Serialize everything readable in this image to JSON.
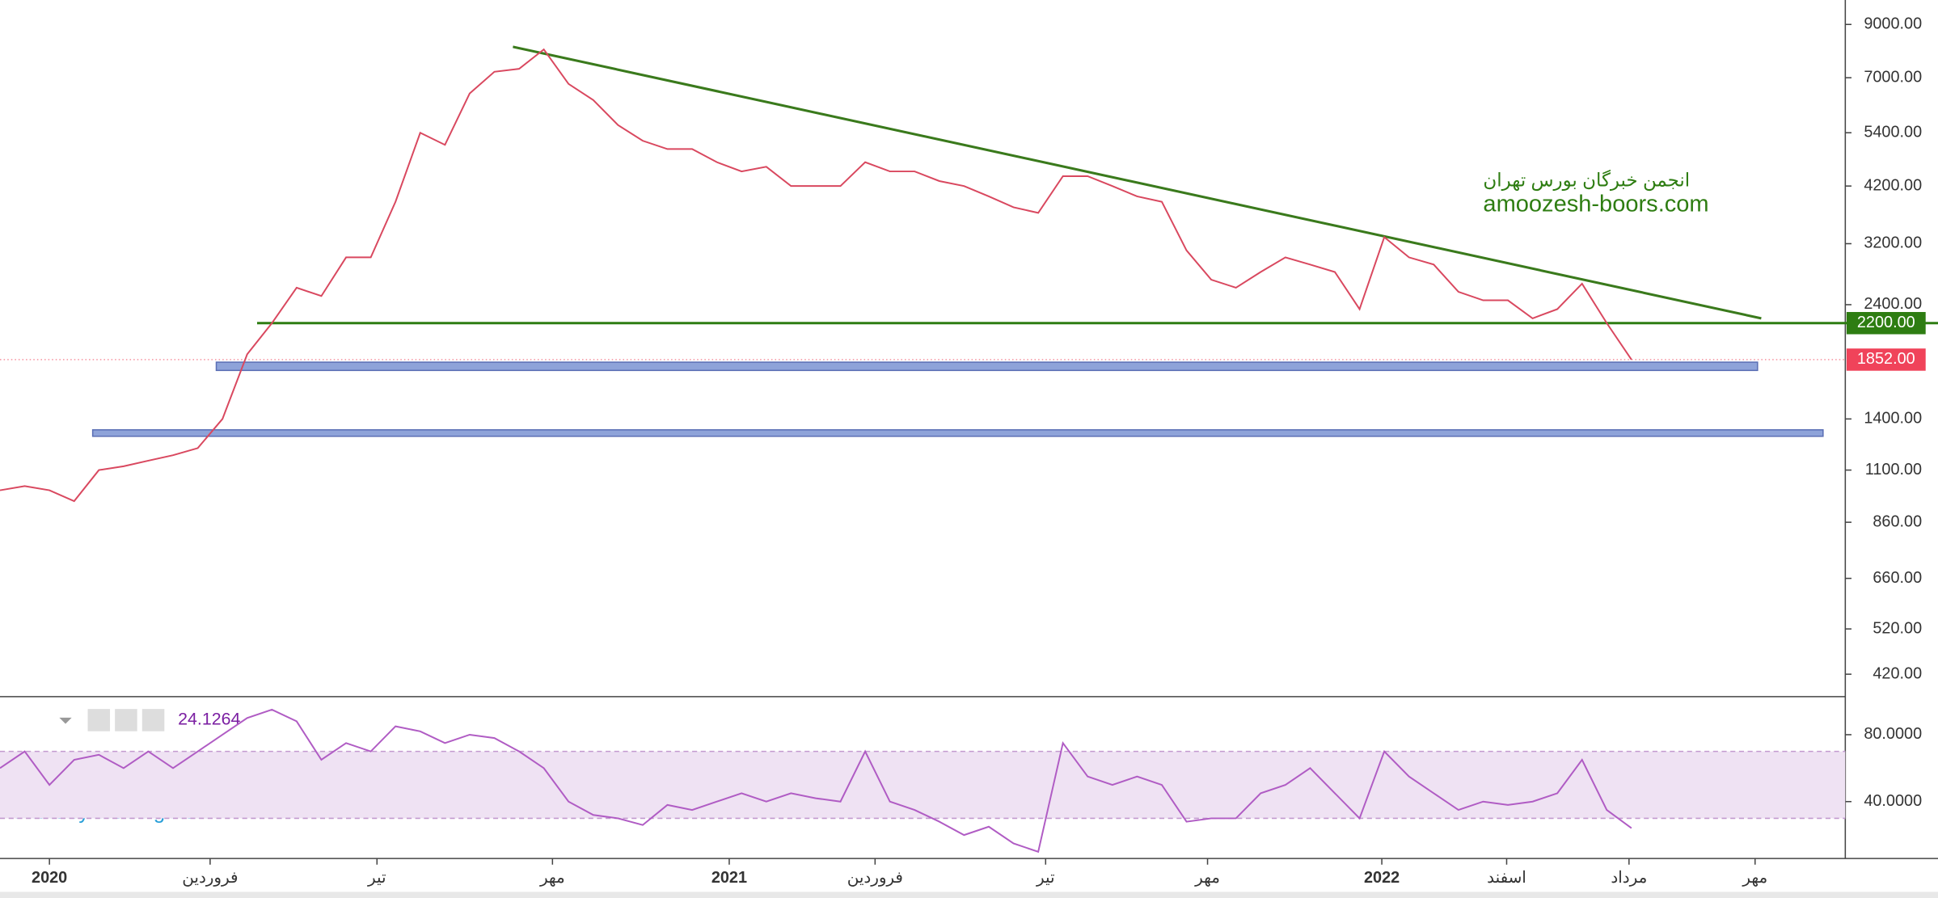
{
  "chart_data": [
    {
      "type": "line",
      "log_scale": true,
      "series": [
        {
          "name": "Price",
          "color": "#d9485f",
          "values": [
            1000,
            1020,
            1000,
            950,
            1100,
            1120,
            1150,
            1180,
            1220,
            1400,
            1900,
            2200,
            2600,
            2500,
            3000,
            3000,
            3900,
            5400,
            5100,
            6500,
            7200,
            7300,
            8000,
            6800,
            6300,
            5600,
            5200,
            5000,
            5000,
            4700,
            4500,
            4600,
            4200,
            4200,
            4200,
            4700,
            4500,
            4500,
            4300,
            4200,
            4000,
            3800,
            3700,
            4400,
            4400,
            4200,
            4000,
            3900,
            3100,
            2700,
            2600,
            2800,
            3000,
            2900,
            2800,
            2350,
            3300,
            3000,
            2900,
            2550,
            2450,
            2450,
            2250,
            2350,
            2650,
            2200,
            1852
          ]
        }
      ],
      "ylim": [
        380,
        10100
      ],
      "yticks": [
        {
          "value": 9000,
          "label": "9000.00"
        },
        {
          "value": 7000,
          "label": "7000.00"
        },
        {
          "value": 5400,
          "label": "5400.00"
        },
        {
          "value": 4200,
          "label": "4200.00"
        },
        {
          "value": 3200,
          "label": "3200.00"
        },
        {
          "value": 2400,
          "label": "2400.00"
        },
        {
          "value": 1400,
          "label": "1400.00"
        },
        {
          "value": 1100,
          "label": "1100.00"
        },
        {
          "value": 860,
          "label": "860.00"
        },
        {
          "value": 660,
          "label": "660.00"
        },
        {
          "value": 520,
          "label": "520.00"
        },
        {
          "value": 420,
          "label": "420.00"
        }
      ],
      "price_tags": [
        {
          "value": 2200,
          "label": "2200.00",
          "color": "#2e7d12"
        },
        {
          "value": 1852,
          "label": "1852.00",
          "color": "#f0435a"
        }
      ],
      "trendline": {
        "start": 8100,
        "end": 2250,
        "color": "#3a7a1c"
      },
      "support": {
        "value": 2200,
        "color": "#2e7d12"
      },
      "zones": [
        {
          "low": 1760,
          "high": 1830,
          "color": "#8ea3d9"
        },
        {
          "low": 1290,
          "high": 1330,
          "color": "#8ea3d9"
        }
      ],
      "watermark": [
        "انجمن خبرگان بورس تهران",
        "amoozesh-boors.com"
      ],
      "x_labels": [
        "2020",
        "فروردین",
        "تیر",
        "مهر",
        "2021",
        "فروردین",
        "تیر",
        "مهر",
        "2022",
        "اسفند",
        "مرداد",
        "مهر"
      ]
    },
    {
      "type": "line",
      "series": [
        {
          "name": "RSI",
          "color": "#b05cc4",
          "values": [
            60,
            70,
            50,
            65,
            68,
            60,
            70,
            60,
            70,
            80,
            90,
            95,
            88,
            65,
            75,
            70,
            85,
            82,
            75,
            80,
            78,
            70,
            60,
            40,
            32,
            30,
            26,
            38,
            35,
            40,
            45,
            40,
            45,
            42,
            40,
            70,
            40,
            35,
            28,
            20,
            25,
            15,
            10,
            75,
            55,
            50,
            55,
            50,
            28,
            30,
            30,
            45,
            50,
            60,
            45,
            30,
            70,
            55,
            45,
            35,
            40,
            38,
            40,
            45,
            65,
            35,
            24.1264
          ]
        }
      ],
      "ylim": [
        6,
        102
      ],
      "yticks": [
        {
          "value": 80,
          "label": "80.0000"
        },
        {
          "value": 40,
          "label": "40.0000"
        }
      ],
      "band": [
        30,
        70
      ]
    },
    {
      "type": "footer",
      "credit": "Chart by TradingView"
    }
  ]
}
